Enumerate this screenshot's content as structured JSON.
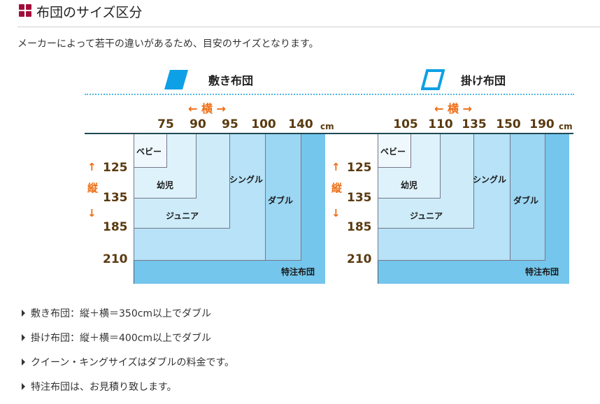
{
  "title": "布団のサイズ区分",
  "intro": "メーカーによって若干の違いがあるため、目安のサイズとなります。",
  "colors": {
    "accent": "#a30d3a",
    "arrow": "#ee6c12",
    "number": "#5a3a10",
    "icon": "#0da0e6"
  },
  "shikibuton": {
    "label": "敷き布団",
    "icon": "filled-parallelogram-icon",
    "width_label": "← 横 →",
    "height_label": "縦",
    "unit": "cm",
    "widths": [
      "75",
      "90",
      "95",
      "100",
      "140"
    ],
    "lengths": [
      "125",
      "135",
      "185",
      "210"
    ],
    "zones": [
      "ベビー",
      "幼児",
      "ジュニア",
      "シングル",
      "ダブル",
      "特注布団"
    ]
  },
  "kakebuton": {
    "label": "掛け布団",
    "icon": "outline-parallelogram-icon",
    "width_label": "← 横 →",
    "height_label": "縦",
    "unit": "cm",
    "widths": [
      "105",
      "110",
      "135",
      "150",
      "190"
    ],
    "lengths": [
      "125",
      "135",
      "185",
      "210"
    ],
    "zones": [
      "ベビー",
      "幼児",
      "ジュニア",
      "シングル",
      "ダブル",
      "特注布団"
    ]
  },
  "notes": [
    "敷き布団：縦＋横＝350cm以上でダブル",
    "掛け布団：縦＋横＝400cm以上でダブル",
    "クイーン・キングサイズはダブルの料金です。",
    "特注布団は、お見積り致します。"
  ]
}
